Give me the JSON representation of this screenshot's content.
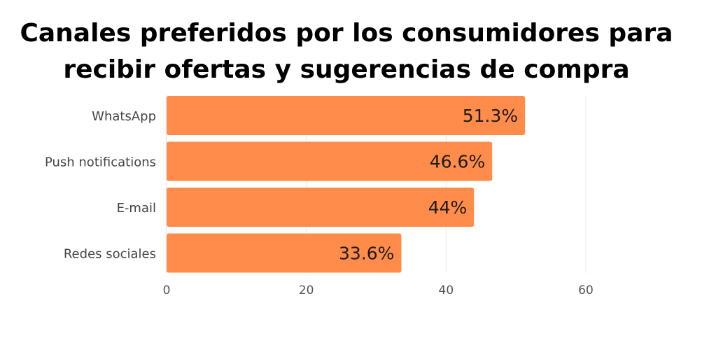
{
  "chart_data": {
    "type": "bar",
    "orientation": "horizontal",
    "title": "Canales preferidos por los consumidores para recibir ofertas y sugerencias de compra",
    "categories": [
      "WhatsApp",
      "Push notifications",
      "E-mail",
      "Redes sociales"
    ],
    "values": [
      51.3,
      46.6,
      44,
      33.6
    ],
    "value_labels": [
      "51.3%",
      "46.6%",
      "44%",
      "33.6%"
    ],
    "xticks": [
      0,
      20,
      40,
      60
    ],
    "xlim": [
      0,
      60
    ],
    "xlabel": "",
    "ylabel": "",
    "grid": true,
    "legend": "none",
    "bar_color": "#FF8C4B"
  }
}
